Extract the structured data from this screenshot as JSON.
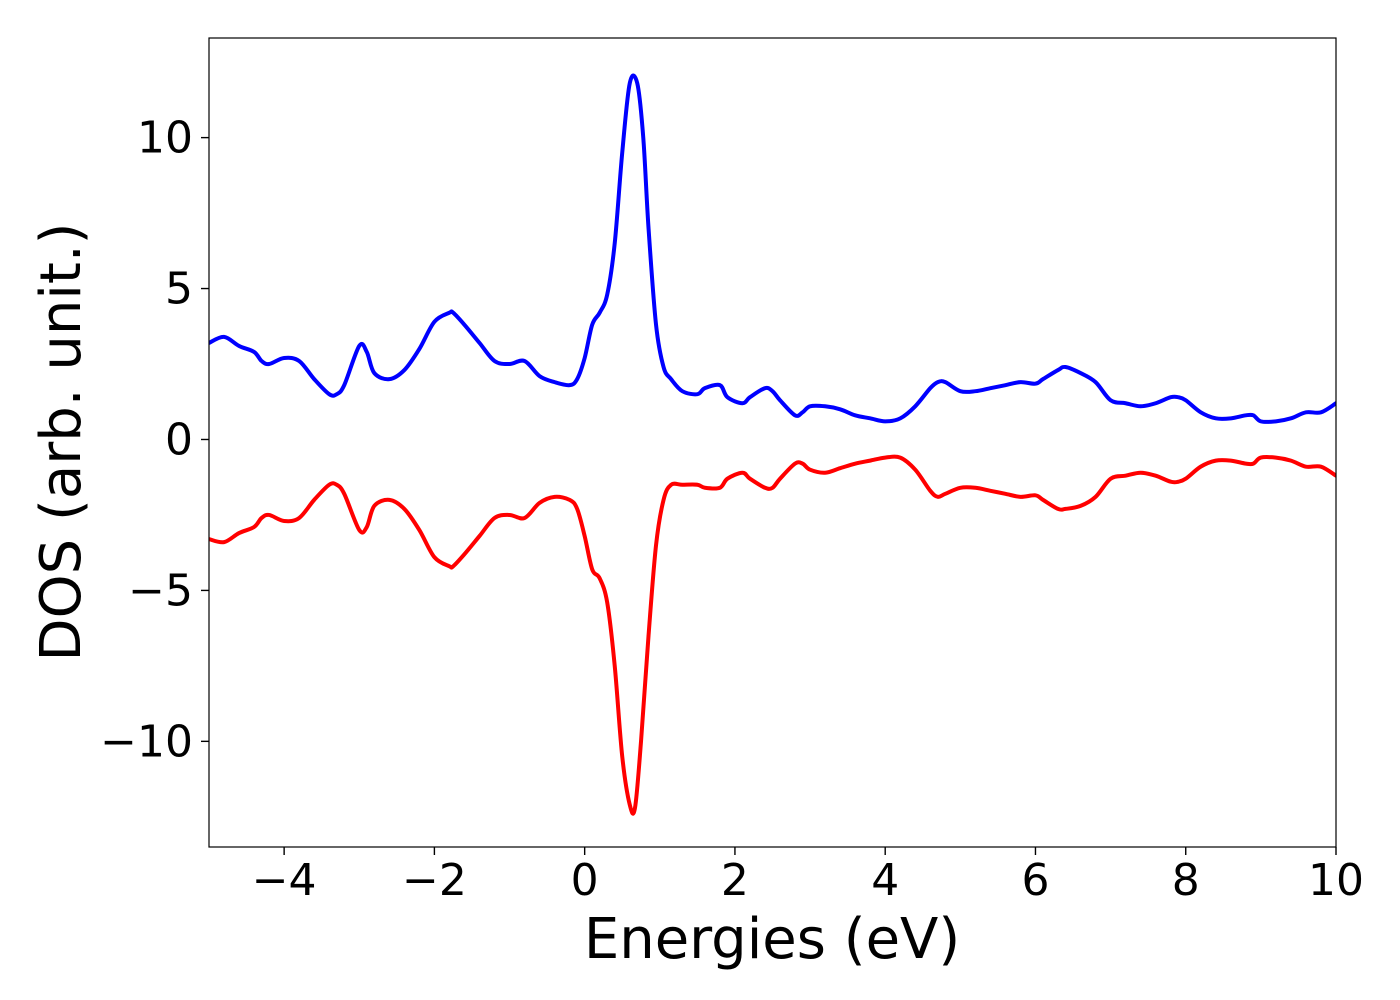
{
  "chart_data": {
    "type": "line",
    "title": "",
    "xlabel": "Energies (eV)",
    "ylabel": "DOS (arb. unit.)",
    "xlim": [
      -5,
      10
    ],
    "ylim": [
      -13.5,
      13.3
    ],
    "xticks": [
      -4,
      -2,
      0,
      2,
      4,
      6,
      8,
      10
    ],
    "xtick_labels": [
      "−4",
      "−2",
      "0",
      "2",
      "4",
      "6",
      "8",
      "10"
    ],
    "yticks": [
      -10,
      -5,
      0,
      5,
      10
    ],
    "ytick_labels": [
      "−10",
      "−5",
      "0",
      "5",
      "10"
    ],
    "grid": false,
    "legend": null,
    "series": [
      {
        "color": "#0000ff",
        "x": [
          -5.0,
          -4.8,
          -4.6,
          -4.4,
          -4.3,
          -4.2,
          -4.0,
          -3.8,
          -3.6,
          -3.4,
          -3.3,
          -3.2,
          -3.0,
          -2.9,
          -2.8,
          -2.6,
          -2.4,
          -2.2,
          -2.0,
          -1.8,
          -1.75,
          -1.6,
          -1.4,
          -1.2,
          -1.0,
          -0.8,
          -0.6,
          -0.4,
          -0.2,
          -0.1,
          0.0,
          0.1,
          0.2,
          0.3,
          0.4,
          0.5,
          0.6,
          0.7,
          0.78,
          0.85,
          0.95,
          1.05,
          1.15,
          1.3,
          1.5,
          1.6,
          1.8,
          1.9,
          2.1,
          2.2,
          2.4,
          2.5,
          2.6,
          2.8,
          2.9,
          3.0,
          3.2,
          3.4,
          3.6,
          3.8,
          4.0,
          4.2,
          4.4,
          4.6,
          4.7,
          4.8,
          5.0,
          5.2,
          5.4,
          5.6,
          5.8,
          6.0,
          6.1,
          6.3,
          6.4,
          6.6,
          6.8,
          7.0,
          7.2,
          7.4,
          7.6,
          7.8,
          7.9,
          8.0,
          8.2,
          8.4,
          8.6,
          8.8,
          8.9,
          9.0,
          9.2,
          9.4,
          9.6,
          9.8,
          10.0
        ],
        "y": [
          3.2,
          3.4,
          3.1,
          2.9,
          2.6,
          2.5,
          2.7,
          2.6,
          2.0,
          1.5,
          1.5,
          1.8,
          3.1,
          2.9,
          2.2,
          2.0,
          2.3,
          3.0,
          3.9,
          4.2,
          4.2,
          3.8,
          3.2,
          2.6,
          2.5,
          2.6,
          2.1,
          1.9,
          1.8,
          2.0,
          2.7,
          3.8,
          4.2,
          4.8,
          6.5,
          9.5,
          11.8,
          11.8,
          10.0,
          7.0,
          3.8,
          2.4,
          2.0,
          1.6,
          1.5,
          1.7,
          1.8,
          1.4,
          1.2,
          1.4,
          1.7,
          1.6,
          1.3,
          0.8,
          0.9,
          1.1,
          1.1,
          1.0,
          0.8,
          0.7,
          0.6,
          0.7,
          1.1,
          1.7,
          1.9,
          1.9,
          1.6,
          1.6,
          1.7,
          1.8,
          1.9,
          1.85,
          2.0,
          2.3,
          2.4,
          2.2,
          1.9,
          1.3,
          1.2,
          1.1,
          1.2,
          1.4,
          1.4,
          1.3,
          0.9,
          0.7,
          0.7,
          0.8,
          0.8,
          0.6,
          0.6,
          0.7,
          0.9,
          0.9,
          1.2
        ]
      },
      {
        "color": "#ff0000",
        "x": [
          -5.0,
          -4.8,
          -4.6,
          -4.4,
          -4.3,
          -4.2,
          -4.0,
          -3.8,
          -3.6,
          -3.4,
          -3.3,
          -3.2,
          -3.0,
          -2.9,
          -2.8,
          -2.6,
          -2.4,
          -2.2,
          -2.0,
          -1.8,
          -1.75,
          -1.6,
          -1.4,
          -1.2,
          -1.0,
          -0.8,
          -0.6,
          -0.4,
          -0.2,
          -0.1,
          0.0,
          0.1,
          0.2,
          0.3,
          0.4,
          0.5,
          0.6,
          0.67,
          0.75,
          0.85,
          0.95,
          1.05,
          1.15,
          1.3,
          1.5,
          1.6,
          1.8,
          1.9,
          2.1,
          2.2,
          2.4,
          2.5,
          2.6,
          2.8,
          2.9,
          3.0,
          3.2,
          3.4,
          3.6,
          3.8,
          4.0,
          4.2,
          4.4,
          4.6,
          4.7,
          4.8,
          5.0,
          5.2,
          5.4,
          5.6,
          5.8,
          6.0,
          6.1,
          6.3,
          6.4,
          6.6,
          6.8,
          7.0,
          7.2,
          7.4,
          7.6,
          7.8,
          7.9,
          8.0,
          8.2,
          8.4,
          8.6,
          8.8,
          8.9,
          9.0,
          9.2,
          9.4,
          9.6,
          9.8,
          10.0
        ],
        "y": [
          -3.3,
          -3.4,
          -3.1,
          -2.9,
          -2.6,
          -2.5,
          -2.7,
          -2.6,
          -2.0,
          -1.5,
          -1.5,
          -1.8,
          -3.0,
          -2.9,
          -2.2,
          -2.0,
          -2.3,
          -3.0,
          -3.9,
          -4.2,
          -4.2,
          -3.8,
          -3.2,
          -2.6,
          -2.5,
          -2.6,
          -2.1,
          -1.9,
          -2.0,
          -2.3,
          -3.2,
          -4.3,
          -4.6,
          -5.4,
          -7.5,
          -10.5,
          -12.1,
          -12.2,
          -10.0,
          -6.5,
          -3.5,
          -2.0,
          -1.5,
          -1.5,
          -1.5,
          -1.6,
          -1.6,
          -1.3,
          -1.1,
          -1.3,
          -1.6,
          -1.6,
          -1.3,
          -0.8,
          -0.8,
          -1.0,
          -1.1,
          -0.95,
          -0.8,
          -0.7,
          -0.6,
          -0.6,
          -1.0,
          -1.7,
          -1.9,
          -1.8,
          -1.6,
          -1.6,
          -1.7,
          -1.8,
          -1.9,
          -1.85,
          -2.0,
          -2.3,
          -2.3,
          -2.2,
          -1.9,
          -1.3,
          -1.2,
          -1.1,
          -1.2,
          -1.4,
          -1.4,
          -1.3,
          -0.9,
          -0.7,
          -0.7,
          -0.8,
          -0.8,
          -0.6,
          -0.6,
          -0.7,
          -0.9,
          -0.9,
          -1.2
        ]
      }
    ]
  }
}
